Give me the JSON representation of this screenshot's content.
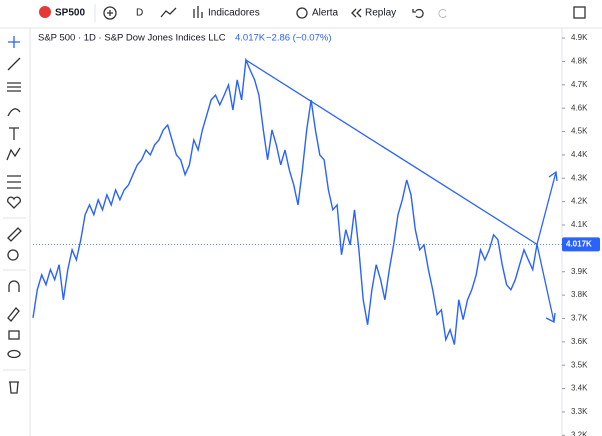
{
  "toolbar": {
    "symbol": "SP500",
    "interval": "D",
    "indicators": "Indicadores",
    "alert": "Alerta",
    "replay": "Replay"
  },
  "chart_data": {
    "type": "line",
    "title": "S&P 500 · 1D · S&P Dow Jones Indices LLC",
    "change": "−2.86 (−0.07%)",
    "last": {
      "value": 4017,
      "label": "4.017K"
    },
    "series": [
      {
        "name": "S&P 500",
        "color": "#2962ff",
        "values": [
          3703,
          3823,
          3887,
          3844,
          3909,
          3866,
          3930,
          3780,
          3909,
          3994,
          3951,
          4037,
          4144,
          4186,
          4144,
          4208,
          4165,
          4229,
          4186,
          4250,
          4208,
          4250,
          4272,
          4315,
          4357,
          4379,
          4421,
          4400,
          4443,
          4464,
          4507,
          4528,
          4464,
          4400,
          4379,
          4315,
          4357,
          4464,
          4421,
          4507,
          4571,
          4635,
          4656,
          4614,
          4656,
          4699,
          4592,
          4721,
          4635,
          4806,
          4763,
          4721,
          4656,
          4507,
          4379,
          4507,
          4443,
          4357,
          4421,
          4336,
          4272,
          4186,
          4336,
          4507,
          4635,
          4507,
          4400,
          4379,
          4250,
          4165,
          4186,
          3973,
          4080,
          4015,
          4165,
          3994,
          3780,
          3673,
          3823,
          3930,
          3866,
          3780,
          3909,
          4015,
          4144,
          4208,
          4293,
          4229,
          4080,
          3994,
          4015,
          3909,
          3823,
          3716,
          3737,
          3609,
          3652,
          3588,
          3780,
          3695,
          3780,
          3823,
          3887,
          3994,
          3951,
          3994,
          4058,
          4037,
          3930,
          3844,
          3823,
          3866,
          3930,
          3994,
          3951,
          3909,
          4017
        ]
      }
    ],
    "ylim": [
      3197,
      4943
    ],
    "yticks": [
      {
        "value": 3200,
        "label": "3.2K"
      },
      {
        "value": 3300,
        "label": "3.3K"
      },
      {
        "value": 3400,
        "label": "3.4K"
      },
      {
        "value": 3500,
        "label": "3.5K"
      },
      {
        "value": 3600,
        "label": "3.6K"
      },
      {
        "value": 3700,
        "label": "3.7K"
      },
      {
        "value": 3800,
        "label": "3.8K"
      },
      {
        "value": 3900,
        "label": "3.9K"
      },
      {
        "value": 4100,
        "label": "4.1K"
      },
      {
        "value": 4200,
        "label": "4.2K"
      },
      {
        "value": 4300,
        "label": "4.3K"
      },
      {
        "value": 4400,
        "label": "4.4K"
      },
      {
        "value": 4500,
        "label": "4.5K"
      },
      {
        "value": 4600,
        "label": "4.6K"
      },
      {
        "value": 4700,
        "label": "4.7K"
      },
      {
        "value": 4800,
        "label": "4.8K"
      },
      {
        "value": 4900,
        "label": "4.9K"
      }
    ]
  }
}
